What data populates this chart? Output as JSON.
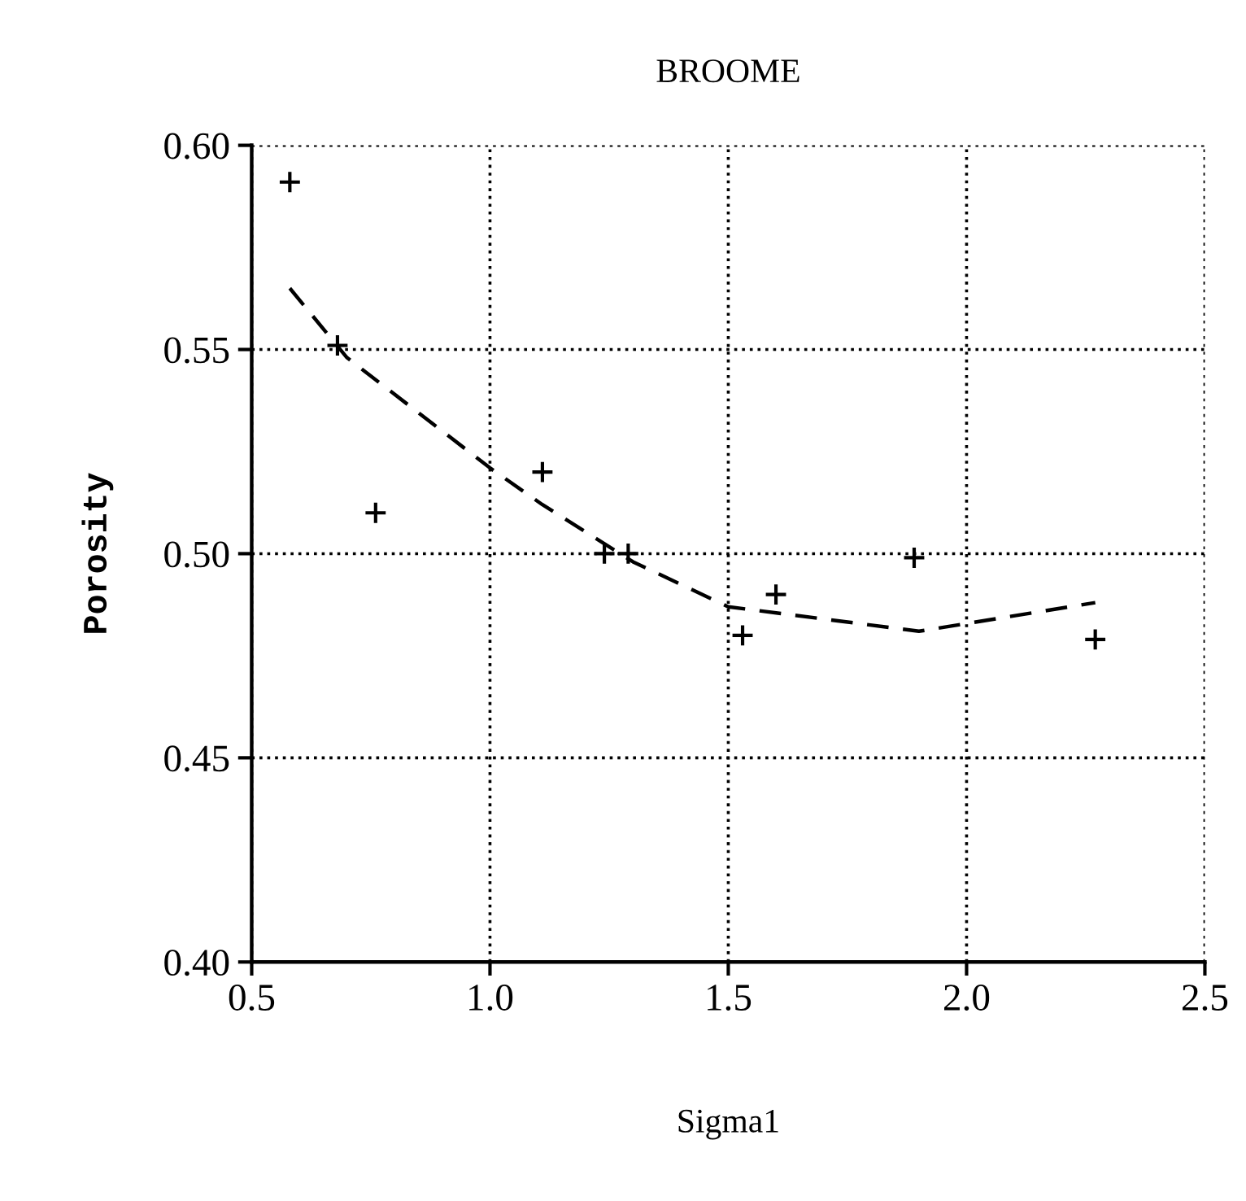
{
  "chart_data": {
    "type": "scatter",
    "title": "BROOME",
    "xlabel": "Sigma1",
    "ylabel": "Porosity",
    "xlim": [
      0.5,
      2.5
    ],
    "xticks": [
      {
        "value": 0.5,
        "label": "0.5"
      },
      {
        "value": 1.0,
        "label": "1.0"
      },
      {
        "value": 1.5,
        "label": "1.5"
      },
      {
        "value": 2.0,
        "label": "2.0"
      },
      {
        "value": 2.5,
        "label": "2.5"
      }
    ],
    "ylim": [
      0.4,
      0.6
    ],
    "yticks": [
      {
        "value": 0.4,
        "label": "0.40"
      },
      {
        "value": 0.45,
        "label": "0.45"
      },
      {
        "value": 0.5,
        "label": "0.50"
      },
      {
        "value": 0.55,
        "label": "0.55"
      },
      {
        "value": 0.6,
        "label": "0.60"
      }
    ],
    "grid": true,
    "legend": false,
    "series": [
      {
        "color": "#000000",
        "marker": "cross",
        "x": [
          0.58,
          0.68,
          0.76,
          1.11,
          1.24,
          1.29,
          1.53,
          1.6,
          1.89,
          2.27
        ],
        "values": [
          0.591,
          0.551,
          0.51,
          0.52,
          0.5,
          0.5,
          0.48,
          0.49,
          0.499,
          0.479
        ]
      },
      {
        "type": "line",
        "color": "#000000",
        "line_style": "dashed",
        "x": [
          0.58,
          0.7,
          1.0,
          1.11,
          1.3,
          1.5,
          1.9,
          2.27
        ],
        "values": [
          0.565,
          0.548,
          0.521,
          0.512,
          0.498,
          0.487,
          0.481,
          0.488
        ]
      }
    ]
  }
}
